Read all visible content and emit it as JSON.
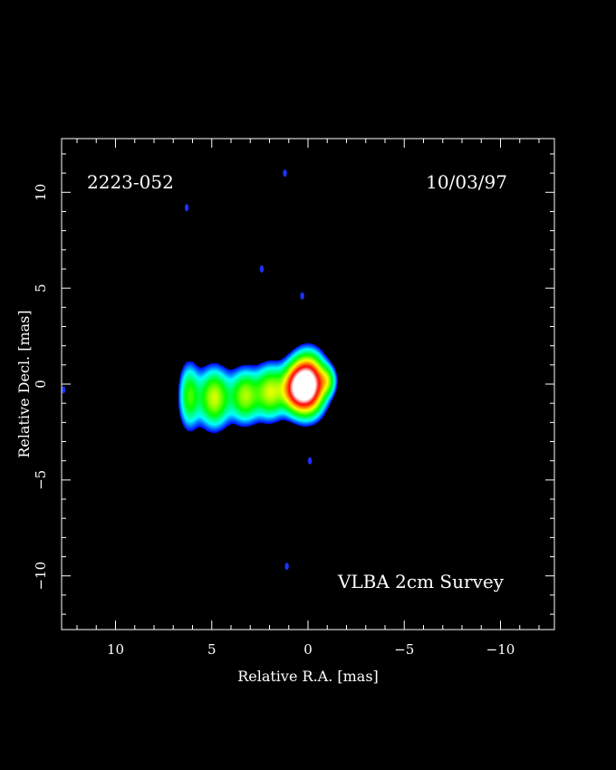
{
  "chart_data": {
    "type": "heatmap",
    "source_name": "2223-052",
    "date": "10/03/97",
    "survey": "VLBA 2cm Survey",
    "xlabel": "Relative R.A. [mas]",
    "ylabel": "Relative Decl. [mas]",
    "xlim": [
      12.8,
      -12.8
    ],
    "ylim": [
      -12.8,
      12.8
    ],
    "x_ticks": [
      10,
      5,
      0,
      -5,
      -10
    ],
    "y_ticks": [
      10,
      5,
      0,
      -5,
      -10
    ],
    "x_tick_labels": [
      "10",
      "5",
      "0",
      "−5",
      "−10"
    ],
    "y_tick_labels": [
      "10",
      "5",
      "0",
      "−5",
      "−10"
    ],
    "colormap": [
      "#0000ff",
      "#00ffff",
      "#00ff00",
      "#ffff00",
      "#ff0000",
      "#ffffff"
    ],
    "components": [
      {
        "x": 0.0,
        "y": 0.0,
        "sx": 0.55,
        "sy": 0.95,
        "amp": 1.0
      },
      {
        "x": 0.7,
        "y": -0.2,
        "sx": 0.5,
        "sy": 0.8,
        "amp": 0.55
      },
      {
        "x": 2.0,
        "y": -0.4,
        "sx": 0.5,
        "sy": 0.9,
        "amp": 0.4
      },
      {
        "x": 3.3,
        "y": -0.6,
        "sx": 0.5,
        "sy": 0.9,
        "amp": 0.38
      },
      {
        "x": 4.9,
        "y": -0.7,
        "sx": 0.55,
        "sy": 1.0,
        "amp": 0.42
      },
      {
        "x": 6.2,
        "y": -0.6,
        "sx": 0.35,
        "sy": 1.1,
        "amp": 0.3
      },
      {
        "x": -1.0,
        "y": 0.2,
        "sx": 0.3,
        "sy": 0.5,
        "amp": 0.25
      }
    ],
    "noise_spots": [
      {
        "x": 1.2,
        "y": 11.0
      },
      {
        "x": 6.3,
        "y": 9.2
      },
      {
        "x": 2.4,
        "y": 6.0
      },
      {
        "x": 0.3,
        "y": 4.6
      },
      {
        "x": 12.7,
        "y": -0.3
      },
      {
        "x": -0.1,
        "y": -4.0
      },
      {
        "x": 1.1,
        "y": -9.5
      }
    ]
  }
}
